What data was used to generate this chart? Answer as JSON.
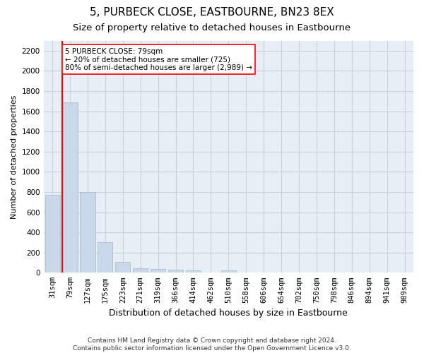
{
  "title": "5, PURBECK CLOSE, EASTBOURNE, BN23 8EX",
  "subtitle": "Size of property relative to detached houses in Eastbourne",
  "xlabel": "Distribution of detached houses by size in Eastbourne",
  "ylabel": "Number of detached properties",
  "bar_color": "#c8d8e8",
  "bar_edge_color": "#a0b8cc",
  "grid_color": "#c8d0dc",
  "bg_color": "#e8eef6",
  "categories": [
    "31sqm",
    "79sqm",
    "127sqm",
    "175sqm",
    "223sqm",
    "271sqm",
    "319sqm",
    "366sqm",
    "414sqm",
    "462sqm",
    "510sqm",
    "558sqm",
    "606sqm",
    "654sqm",
    "702sqm",
    "750sqm",
    "798sqm",
    "846sqm",
    "894sqm",
    "941sqm",
    "989sqm"
  ],
  "values": [
    770,
    1690,
    800,
    300,
    110,
    45,
    35,
    28,
    22,
    0,
    22,
    0,
    0,
    0,
    0,
    0,
    0,
    0,
    0,
    0,
    0
  ],
  "ylim": [
    0,
    2300
  ],
  "yticks": [
    0,
    200,
    400,
    600,
    800,
    1000,
    1200,
    1400,
    1600,
    1800,
    2000,
    2200
  ],
  "vline_x_index": 1,
  "annotation_text": "5 PURBECK CLOSE: 79sqm\n← 20% of detached houses are smaller (725)\n80% of semi-detached houses are larger (2,989) →",
  "footer": "Contains HM Land Registry data © Crown copyright and database right 2024.\nContains public sector information licensed under the Open Government Licence v3.0.",
  "title_fontsize": 11,
  "subtitle_fontsize": 9.5,
  "xlabel_fontsize": 9,
  "ylabel_fontsize": 8,
  "tick_fontsize": 7.5,
  "annotation_fontsize": 7.5,
  "footer_fontsize": 6.5
}
